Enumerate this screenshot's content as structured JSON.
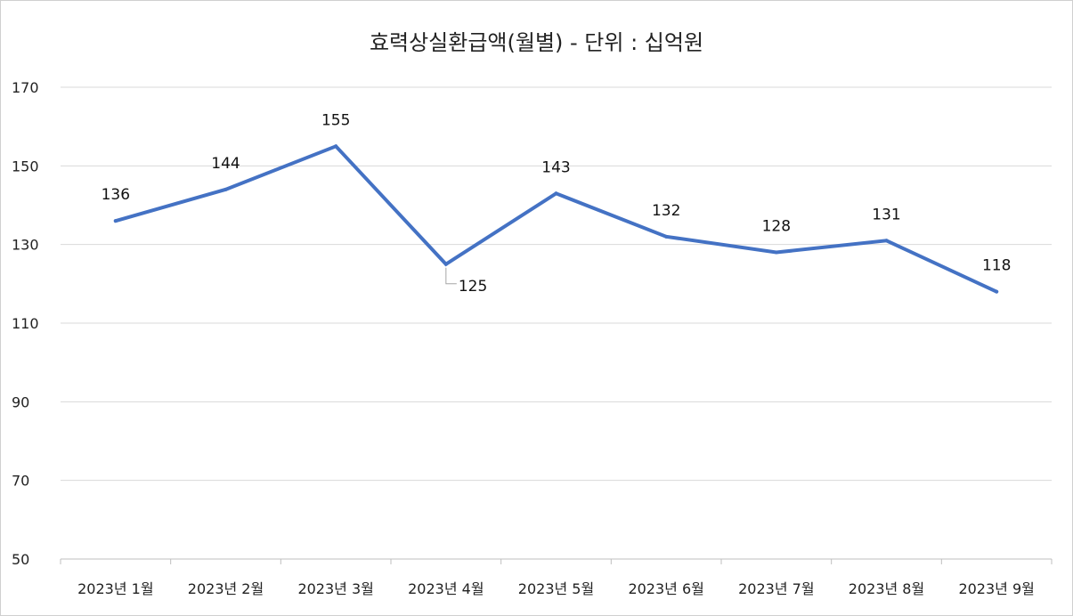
{
  "chart_data": {
    "type": "line",
    "title": "효력상실환급액(월별) - 단위 : 십억원",
    "xlabel": "",
    "ylabel": "",
    "categories": [
      "2023년 1월",
      "2023년 2월",
      "2023년 3월",
      "2023년 4월",
      "2023년 5월",
      "2023년 6월",
      "2023년 7월",
      "2023년 8월",
      "2023년 9월"
    ],
    "series": [
      {
        "values": [
          136,
          144,
          155,
          125,
          143,
          132,
          128,
          131,
          118
        ]
      }
    ],
    "ylim": [
      50,
      170
    ],
    "yticks": [
      50,
      70,
      90,
      110,
      130,
      150,
      170
    ],
    "grid": true,
    "legend": "none",
    "colors": {
      "line": "#4472C4",
      "grid": "#d9d9d9",
      "axis": "#bfbfbf",
      "leader": "#a6a6a6"
    }
  }
}
